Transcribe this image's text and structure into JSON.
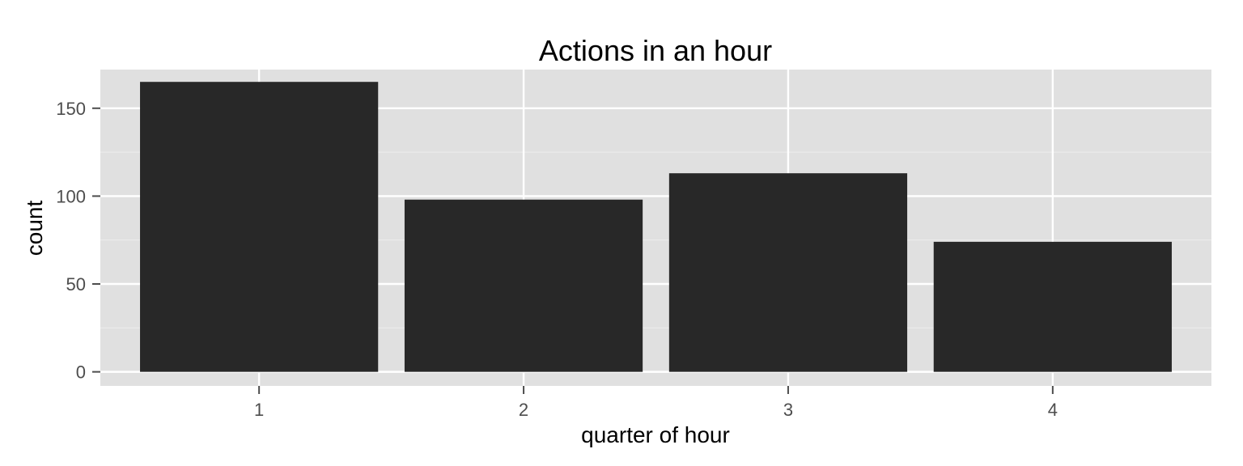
{
  "chart_data": {
    "type": "bar",
    "title": "Actions in an hour",
    "xlabel": "quarter of hour",
    "ylabel": "count",
    "categories": [
      "1",
      "2",
      "3",
      "4"
    ],
    "values": [
      165,
      98,
      113,
      74
    ],
    "ylim": [
      -8,
      172
    ],
    "yticks": [
      0,
      50,
      100,
      150
    ],
    "grid": true,
    "colors": {
      "panel_background": "#e0e0e0",
      "grid_major": "#ffffff",
      "grid_minor": "#ebebeb",
      "bar_fill": "#282828",
      "tick_text": "#4d4d4d",
      "tick_mark": "#4d4d4d"
    }
  }
}
